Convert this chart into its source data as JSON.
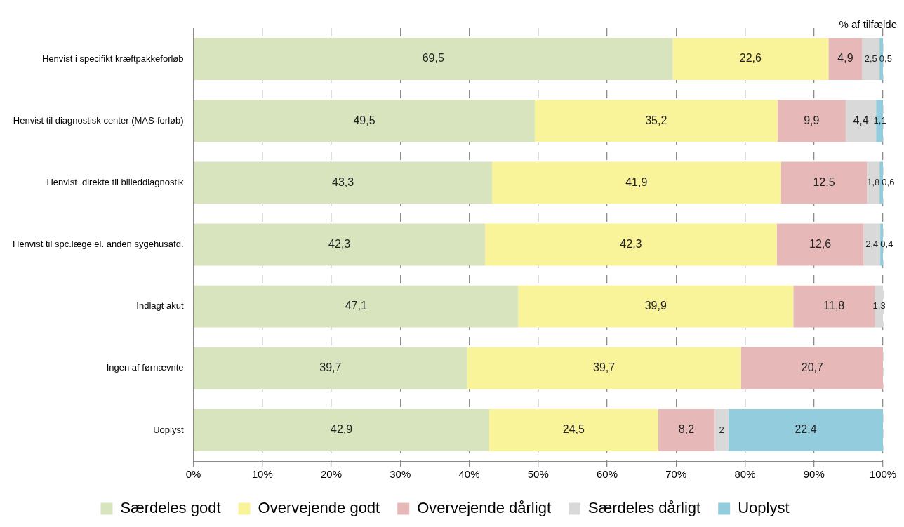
{
  "chart_data": {
    "type": "bar",
    "orientation": "horizontal",
    "stacked": true,
    "categories": [
      "Henvist i specifikt kræftpakkeforløb",
      "Henvist til diagnostisk center (MAS-forløb)",
      "Henvist  direkte til billeddiagnostik",
      "Henvist til spc.læge el. anden sygehusafd.",
      "Indlagt akut",
      "Ingen af førnævnte",
      "Uoplyst"
    ],
    "series": [
      {
        "name": "Særdeles godt",
        "color": "#d7e4bd",
        "values": [
          69.5,
          49.5,
          43.3,
          42.3,
          47.1,
          39.7,
          42.9
        ],
        "value_labels": [
          "69,5",
          "49,5",
          "43,3",
          "42,3",
          "47,1",
          "39,7",
          "42,9"
        ]
      },
      {
        "name": "Overvejende godt",
        "color": "#f9f39a",
        "values": [
          22.6,
          35.2,
          41.9,
          42.3,
          39.9,
          39.7,
          24.5
        ],
        "value_labels": [
          "22,6",
          "35,2",
          "41,9",
          "42,3",
          "39,9",
          "39,7",
          "24,5"
        ]
      },
      {
        "name": "Overvejende dårligt",
        "color": "#e6b9b8",
        "values": [
          4.9,
          9.9,
          12.5,
          12.6,
          11.8,
          20.7,
          8.2
        ],
        "value_labels": [
          "4,9",
          "9,9",
          "12,5",
          "12,6",
          "11,8",
          "20,7",
          "8,2"
        ]
      },
      {
        "name": "Særdeles dårligt",
        "color": "#d9d9d9",
        "values": [
          2.5,
          4.4,
          1.8,
          2.4,
          1.3,
          null,
          2
        ],
        "value_labels": [
          "2,5",
          "4,4",
          "1,8",
          "2,4",
          "1,3",
          null,
          "2"
        ]
      },
      {
        "name": "Uoplyst",
        "color": "#93cddd",
        "values": [
          0.5,
          1.1,
          0.6,
          0.4,
          null,
          null,
          22.4
        ],
        "value_labels": [
          "0,5",
          "1,1",
          "0,6",
          "0,4",
          null,
          null,
          "22,4"
        ]
      }
    ],
    "xlim": [
      0,
      100
    ],
    "xticks": [
      {
        "value": 0,
        "label": "0%"
      },
      {
        "value": 10,
        "label": "10%"
      },
      {
        "value": 20,
        "label": "20%"
      },
      {
        "value": 30,
        "label": "30%"
      },
      {
        "value": 40,
        "label": "40%"
      },
      {
        "value": 50,
        "label": "50%"
      },
      {
        "value": 60,
        "label": "60%"
      },
      {
        "value": 70,
        "label": "70%"
      },
      {
        "value": 80,
        "label": "80%"
      },
      {
        "value": 90,
        "label": "90%"
      },
      {
        "value": 100,
        "label": "100%"
      }
    ],
    "grid": "x",
    "legend": "bottom",
    "annotations": [
      "% af tilfælde"
    ]
  }
}
